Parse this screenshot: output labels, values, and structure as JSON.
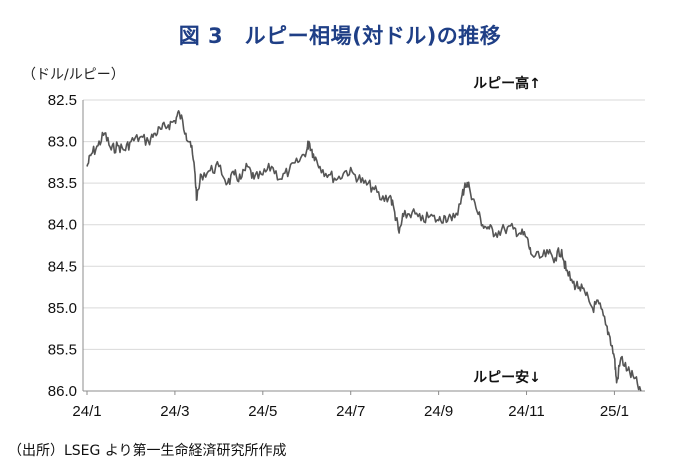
{
  "title": "図 3　ルピー相場(対ドル)の推移",
  "unit_label": "（ドル/ルピー）",
  "source": "（出所）LSEG より第一生命経済研究所作成",
  "chart_data": {
    "type": "line",
    "title": "図 3　ルピー相場(対ドル)の推移",
    "ylabel": "（ドル/ルピー）",
    "y_inverted": true,
    "ylim": [
      82.5,
      86.0
    ],
    "yticks": [
      "82.5",
      "83.0",
      "83.5",
      "84.0",
      "84.5",
      "85.0",
      "85.5",
      "86.0"
    ],
    "xticks": [
      "24/1",
      "24/3",
      "24/5",
      "24/7",
      "24/9",
      "24/11",
      "25/1"
    ],
    "xtick_months": [
      0,
      2,
      4,
      6,
      8,
      10,
      12
    ],
    "xlim_months": [
      0,
      12.65
    ],
    "grid": "horizontal",
    "line_color": "#555555",
    "annotations": {
      "top": "ルピー高↑",
      "bottom": "ルピー安↓"
    },
    "series": [
      {
        "values": [
          [
            0.0,
            83.3
          ],
          [
            0.1,
            83.15
          ],
          [
            0.25,
            83.05
          ],
          [
            0.4,
            82.9
          ],
          [
            0.55,
            83.1
          ],
          [
            0.7,
            83.05
          ],
          [
            0.85,
            83.1
          ],
          [
            1.0,
            83.0
          ],
          [
            1.2,
            82.95
          ],
          [
            1.4,
            83.0
          ],
          [
            1.55,
            82.9
          ],
          [
            1.7,
            82.85
          ],
          [
            1.85,
            82.8
          ],
          [
            2.0,
            82.75
          ],
          [
            2.1,
            82.65
          ],
          [
            2.25,
            82.9
          ],
          [
            2.35,
            83.0
          ],
          [
            2.45,
            83.35
          ],
          [
            2.5,
            83.7
          ],
          [
            2.6,
            83.4
          ],
          [
            2.8,
            83.35
          ],
          [
            3.0,
            83.3
          ],
          [
            3.2,
            83.5
          ],
          [
            3.35,
            83.4
          ],
          [
            3.5,
            83.45
          ],
          [
            3.65,
            83.3
          ],
          [
            3.8,
            83.45
          ],
          [
            4.0,
            83.4
          ],
          [
            4.2,
            83.3
          ],
          [
            4.4,
            83.45
          ],
          [
            4.6,
            83.35
          ],
          [
            4.8,
            83.25
          ],
          [
            5.0,
            83.1
          ],
          [
            5.05,
            83.0
          ],
          [
            5.15,
            83.15
          ],
          [
            5.3,
            83.3
          ],
          [
            5.5,
            83.4
          ],
          [
            5.7,
            83.45
          ],
          [
            5.9,
            83.35
          ],
          [
            6.1,
            83.4
          ],
          [
            6.3,
            83.5
          ],
          [
            6.5,
            83.55
          ],
          [
            6.7,
            83.7
          ],
          [
            6.9,
            83.65
          ],
          [
            7.0,
            83.85
          ],
          [
            7.1,
            84.1
          ],
          [
            7.2,
            83.9
          ],
          [
            7.4,
            83.85
          ],
          [
            7.6,
            83.95
          ],
          [
            7.8,
            83.9
          ],
          [
            8.0,
            83.95
          ],
          [
            8.15,
            83.9
          ],
          [
            8.3,
            83.95
          ],
          [
            8.5,
            83.75
          ],
          [
            8.6,
            83.5
          ],
          [
            8.7,
            83.55
          ],
          [
            8.85,
            83.8
          ],
          [
            9.0,
            84.0
          ],
          [
            9.15,
            84.05
          ],
          [
            9.3,
            84.1
          ],
          [
            9.5,
            84.05
          ],
          [
            9.7,
            84.05
          ],
          [
            9.85,
            84.1
          ],
          [
            10.0,
            84.15
          ],
          [
            10.1,
            84.35
          ],
          [
            10.3,
            84.4
          ],
          [
            10.5,
            84.35
          ],
          [
            10.65,
            84.4
          ],
          [
            10.8,
            84.3
          ],
          [
            10.9,
            84.55
          ],
          [
            11.05,
            84.7
          ],
          [
            11.2,
            84.75
          ],
          [
            11.35,
            84.85
          ],
          [
            11.5,
            85.0
          ],
          [
            11.65,
            84.95
          ],
          [
            11.8,
            85.2
          ],
          [
            11.9,
            85.35
          ],
          [
            12.0,
            85.6
          ],
          [
            12.05,
            85.9
          ],
          [
            12.15,
            85.6
          ],
          [
            12.3,
            85.75
          ],
          [
            12.45,
            85.85
          ],
          [
            12.6,
            86.0
          ]
        ]
      }
    ]
  }
}
